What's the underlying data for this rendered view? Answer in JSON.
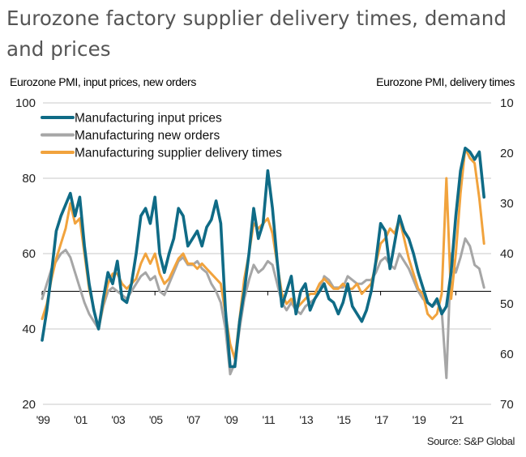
{
  "title": "Eurozone factory supplier delivery times, demand and prices",
  "left_axis_title": "Eurozone PMI, input prices, new orders",
  "right_axis_title": "Eurozone PMI, delivery times",
  "source": "Source: S&P Global",
  "chart_data": {
    "type": "line",
    "title": "Eurozone factory supplier delivery times, demand and prices",
    "xlabel": "",
    "ylabel": "Eurozone PMI, input prices, new orders",
    "y2label": "Eurozone PMI, delivery times",
    "xlim": [
      1999,
      2022.6
    ],
    "ylim": [
      20,
      100
    ],
    "y2lim": [
      70,
      10
    ],
    "y2_inverted": true,
    "reference_line": 50,
    "grid": true,
    "legend_position": "top-left",
    "x_tick_labels": [
      "'99",
      "'01",
      "'03",
      "'05",
      "'07",
      "'09",
      "'11",
      "'13",
      "'15",
      "'17",
      "'19",
      "'21"
    ],
    "x_tick_years": [
      1999,
      2001,
      2003,
      2005,
      2007,
      2009,
      2011,
      2013,
      2015,
      2017,
      2019,
      2021
    ],
    "y_tick_labels": [
      "100",
      "80",
      "60",
      "40",
      "20"
    ],
    "y_ticks": [
      100,
      80,
      60,
      40,
      20
    ],
    "y2_tick_labels": [
      "10",
      "20",
      "30",
      "40",
      "50",
      "60",
      "70"
    ],
    "y2_ticks": [
      10,
      20,
      30,
      40,
      50,
      60,
      70
    ],
    "x": [
      1999.0,
      1999.25,
      1999.5,
      1999.75,
      2000.0,
      2000.25,
      2000.5,
      2000.75,
      2001.0,
      2001.25,
      2001.5,
      2001.75,
      2002.0,
      2002.25,
      2002.5,
      2002.75,
      2003.0,
      2003.25,
      2003.5,
      2003.75,
      2004.0,
      2004.25,
      2004.5,
      2004.75,
      2005.0,
      2005.25,
      2005.5,
      2005.75,
      2006.0,
      2006.25,
      2006.5,
      2006.75,
      2007.0,
      2007.25,
      2007.5,
      2007.75,
      2008.0,
      2008.25,
      2008.5,
      2008.75,
      2009.0,
      2009.25,
      2009.5,
      2009.75,
      2010.0,
      2010.25,
      2010.5,
      2010.75,
      2011.0,
      2011.25,
      2011.5,
      2011.75,
      2012.0,
      2012.25,
      2012.5,
      2012.75,
      2013.0,
      2013.25,
      2013.5,
      2013.75,
      2014.0,
      2014.25,
      2014.5,
      2014.75,
      2015.0,
      2015.25,
      2015.5,
      2015.75,
      2016.0,
      2016.25,
      2016.5,
      2016.75,
      2017.0,
      2017.25,
      2017.5,
      2017.75,
      2018.0,
      2018.25,
      2018.5,
      2018.75,
      2019.0,
      2019.25,
      2019.5,
      2019.75,
      2020.0,
      2020.25,
      2020.5,
      2020.75,
      2021.0,
      2021.25,
      2021.5,
      2021.75,
      2022.0,
      2022.25,
      2022.5
    ],
    "series": [
      {
        "name": "Manufacturing input prices",
        "axis": "left",
        "color": "#0f6b86",
        "values": [
          37,
          45,
          55,
          66,
          70,
          73,
          76,
          70,
          75,
          62,
          52,
          45,
          40,
          48,
          55,
          52,
          58,
          48,
          47,
          52,
          60,
          70,
          72,
          68,
          75,
          60,
          55,
          60,
          64,
          72,
          70,
          62,
          64,
          66,
          62,
          67,
          69,
          74,
          68,
          45,
          30,
          30,
          42,
          50,
          60,
          72,
          64,
          68,
          82,
          72,
          58,
          46,
          50,
          54,
          44,
          50,
          52,
          45,
          48,
          50,
          52,
          48,
          47,
          44,
          47,
          52,
          46,
          44,
          42,
          45,
          50,
          58,
          68,
          66,
          56,
          63,
          70,
          66,
          64,
          60,
          55,
          51,
          47,
          46,
          48,
          44,
          46,
          55,
          70,
          82,
          88,
          87,
          85,
          87,
          75
        ]
      },
      {
        "name": "Manufacturing new orders",
        "axis": "left",
        "color": "#a6a6a6",
        "values": [
          48,
          52,
          56,
          58,
          60,
          61,
          59,
          55,
          51,
          47,
          44,
          42,
          40,
          46,
          50,
          51,
          50,
          49,
          48,
          50,
          52,
          54,
          55,
          53,
          54,
          50,
          49,
          52,
          55,
          58,
          59,
          57,
          57,
          58,
          56,
          55,
          52,
          50,
          47,
          40,
          28,
          31,
          40,
          48,
          53,
          57,
          55,
          56,
          58,
          57,
          52,
          47,
          45,
          47,
          45,
          44,
          46,
          47,
          48,
          50,
          54,
          53,
          51,
          51,
          51,
          54,
          53,
          52,
          52,
          53,
          53,
          55,
          58,
          59,
          57,
          56,
          60,
          58,
          56,
          53,
          50,
          48,
          47,
          46,
          47,
          45,
          27,
          60,
          55,
          59,
          64,
          62,
          57,
          56,
          51
        ]
      },
      {
        "name": "Manufacturing supplier delivery times",
        "axis": "right",
        "color": "#f1a33d",
        "values": [
          53,
          50,
          45,
          41,
          38,
          35,
          30,
          34,
          33,
          40,
          47,
          51,
          55,
          50,
          46,
          44,
          44,
          46,
          47,
          46,
          45,
          42,
          40,
          42,
          40,
          44,
          46,
          45,
          43,
          41,
          40,
          42,
          42,
          43,
          42,
          43,
          44,
          45,
          46,
          52,
          58,
          61,
          53,
          45,
          40,
          34,
          35,
          34,
          33,
          36,
          42,
          48,
          50,
          49,
          51,
          50,
          49,
          48,
          48,
          46,
          45,
          46,
          47,
          47,
          46,
          47,
          47,
          46,
          48,
          47,
          46,
          42,
          38,
          37,
          35,
          36,
          33,
          37,
          41,
          44,
          47,
          48,
          52,
          53,
          52,
          48,
          25,
          49,
          40,
          28,
          19,
          21,
          22,
          29,
          38
        ]
      }
    ]
  },
  "legend": [
    {
      "label": "Manufacturing input prices",
      "color": "#0f6b86"
    },
    {
      "label": "Manufacturing new orders",
      "color": "#a6a6a6"
    },
    {
      "label": "Manufacturing supplier delivery times",
      "color": "#f1a33d"
    }
  ]
}
